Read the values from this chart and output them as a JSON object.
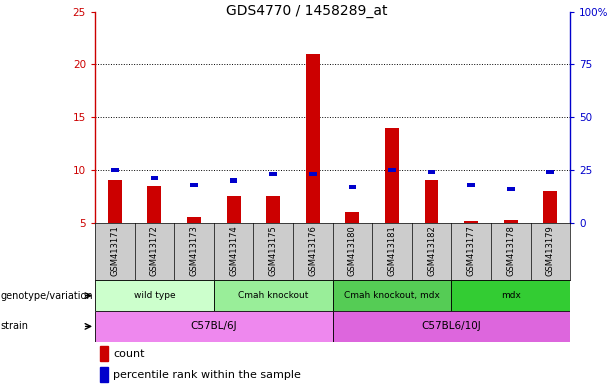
{
  "title": "GDS4770 / 1458289_at",
  "samples": [
    "GSM413171",
    "GSM413172",
    "GSM413173",
    "GSM413174",
    "GSM413175",
    "GSM413176",
    "GSM413180",
    "GSM413181",
    "GSM413182",
    "GSM413177",
    "GSM413178",
    "GSM413179"
  ],
  "count_values": [
    9.0,
    8.5,
    5.5,
    7.5,
    7.5,
    21.0,
    6.0,
    14.0,
    9.0,
    5.2,
    5.3,
    8.0
  ],
  "percentile_values": [
    24,
    20,
    17,
    19,
    22,
    22,
    16,
    24,
    23,
    17,
    15,
    23
  ],
  "ymin": 5,
  "ymax": 25,
  "yticks_left": [
    5,
    10,
    15,
    20,
    25
  ],
  "yticks_right_vals": [
    0,
    25,
    50,
    75,
    100
  ],
  "yticks_right_labels": [
    "0",
    "25",
    "50",
    "75",
    "100%"
  ],
  "bar_color_red": "#cc0000",
  "bar_color_blue": "#0000cc",
  "base_value": 5,
  "genotype_groups": [
    {
      "label": "wild type",
      "start": 0,
      "end": 3,
      "color": "#ccffcc"
    },
    {
      "label": "Cmah knockout",
      "start": 3,
      "end": 6,
      "color": "#99ee99"
    },
    {
      "label": "Cmah knockout, mdx",
      "start": 6,
      "end": 9,
      "color": "#55cc55"
    },
    {
      "label": "mdx",
      "start": 9,
      "end": 12,
      "color": "#33cc33"
    }
  ],
  "strain_groups": [
    {
      "label": "C57BL/6J",
      "start": 0,
      "end": 6,
      "color": "#ee88ee"
    },
    {
      "label": "C57BL6/10J",
      "start": 6,
      "end": 12,
      "color": "#dd66dd"
    }
  ],
  "left_axis_color": "#cc0000",
  "right_axis_color": "#0000cc",
  "label_row_color": "#cccccc",
  "fig_width": 6.13,
  "fig_height": 3.84,
  "dpi": 100
}
